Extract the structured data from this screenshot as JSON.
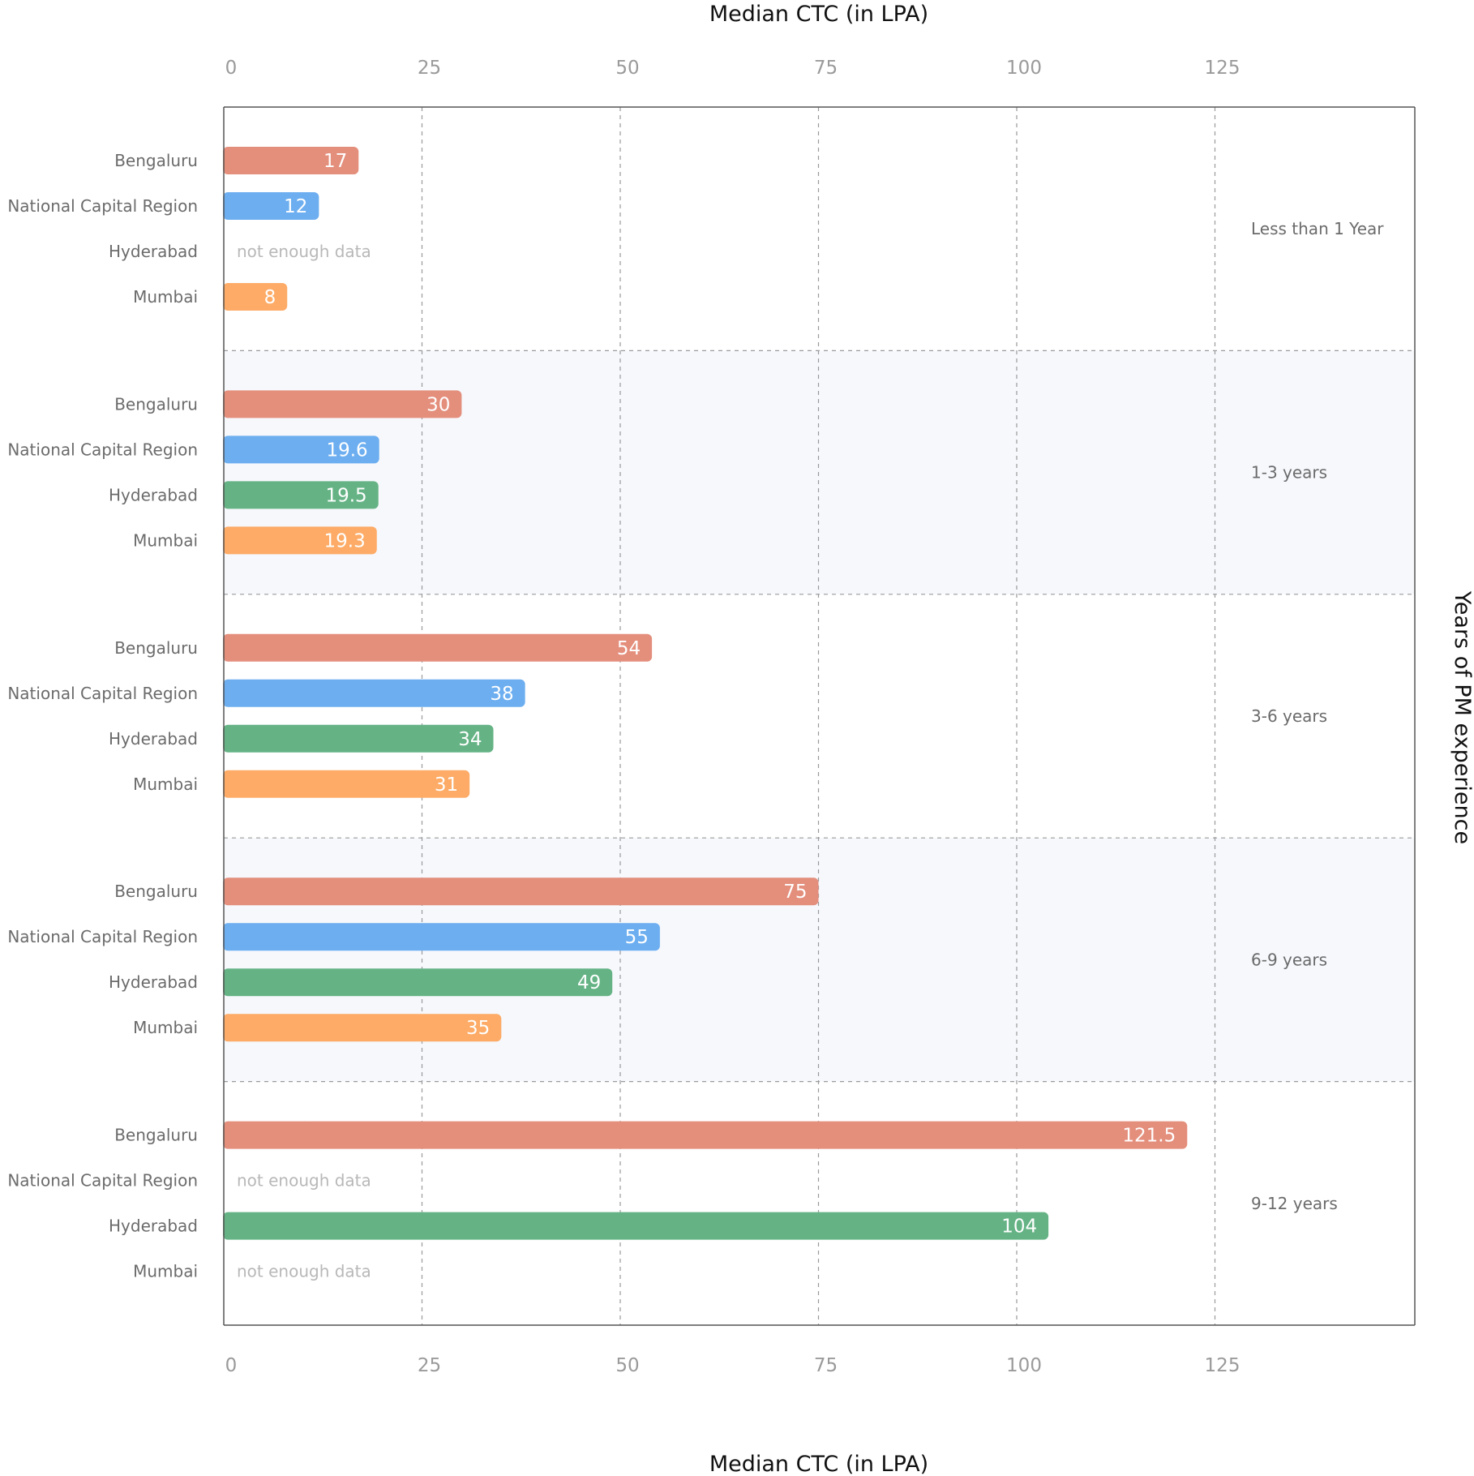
{
  "chart_data": {
    "type": "bar",
    "orientation": "horizontal",
    "title": "",
    "xlabel": "Median CTC (in LPA)",
    "ylabel": "Years of PM experience",
    "xlim": [
      0,
      150
    ],
    "x_ticks": [
      0,
      25,
      50,
      75,
      100,
      125
    ],
    "grid": "vertical dashed",
    "no_data_text": "not enough data",
    "series": [
      {
        "name": "Bengaluru",
        "color": "#e48e7c"
      },
      {
        "name": "National Capital Region",
        "color": "#6caef0"
      },
      {
        "name": "Hyderabad",
        "color": "#65b385"
      },
      {
        "name": "Mumbai",
        "color": "#fdab66"
      }
    ],
    "groups": [
      {
        "label": "Less than 1 Year",
        "shaded": false,
        "values": [
          17,
          12,
          null,
          8
        ],
        "value_labels": [
          "17",
          "12",
          "",
          "8"
        ]
      },
      {
        "label": "1-3 years",
        "shaded": true,
        "values": [
          30,
          19.6,
          19.5,
          19.3
        ],
        "value_labels": [
          "30",
          "19.6",
          "19.5",
          "19.3"
        ]
      },
      {
        "label": "3-6 years",
        "shaded": false,
        "values": [
          54,
          38,
          34,
          31
        ],
        "value_labels": [
          "54",
          "38",
          "34",
          "31"
        ]
      },
      {
        "label": "6-9 years",
        "shaded": true,
        "values": [
          75,
          55,
          49,
          35
        ],
        "value_labels": [
          "75",
          "55",
          "49",
          "35"
        ]
      },
      {
        "label": "9-12 years",
        "shaded": false,
        "values": [
          121.5,
          null,
          104,
          null
        ],
        "value_labels": [
          "121.5",
          "",
          "104",
          ""
        ]
      }
    ],
    "styling": {
      "axis_color": "#555555",
      "grid_color": "#9a9a9a",
      "shade_color": "#f6f8fc"
    }
  }
}
